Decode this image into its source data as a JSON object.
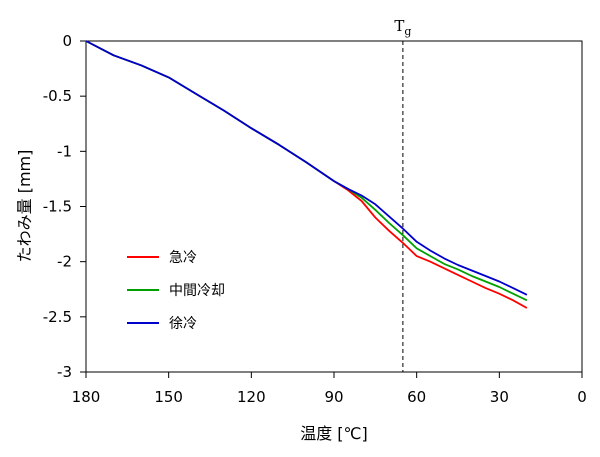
{
  "chart_data": {
    "type": "line",
    "xlabel": "温度 [℃]",
    "ylabel": "たわみ量 [mm]",
    "xlim": [
      180,
      0
    ],
    "ylim": [
      -3,
      0
    ],
    "x_reversed": true,
    "x_ticks": [
      180,
      150,
      120,
      90,
      60,
      30,
      0
    ],
    "y_ticks": [
      0,
      -0.5,
      -1,
      -1.5,
      -2,
      -2.5,
      -3
    ],
    "x_tick_labels": [
      "180",
      "150",
      "120",
      "90",
      "60",
      "30",
      "0"
    ],
    "y_tick_labels": [
      "0",
      "-0.5",
      "-1",
      "-1.5",
      "-2",
      "-2.5",
      "-3"
    ],
    "grid": false,
    "legend_position": "lower-left",
    "annotations": [
      {
        "label": "T",
        "subscript": "g",
        "x": 65,
        "style": "dashed-vertical-line",
        "color": "#000000"
      }
    ],
    "series": [
      {
        "name": "急冷",
        "color": "#ff0000",
        "x": [
          180,
          170,
          160,
          150,
          140,
          130,
          120,
          110,
          100,
          90,
          85,
          80,
          75,
          70,
          65,
          60,
          55,
          50,
          45,
          40,
          35,
          30,
          25,
          20
        ],
        "y": [
          0,
          -0.13,
          -0.22,
          -0.33,
          -0.48,
          -0.63,
          -0.79,
          -0.94,
          -1.1,
          -1.27,
          -1.35,
          -1.45,
          -1.6,
          -1.72,
          -1.83,
          -1.95,
          -2.0,
          -2.06,
          -2.12,
          -2.18,
          -2.24,
          -2.29,
          -2.35,
          -2.42
        ]
      },
      {
        "name": "中間冷却",
        "color": "#00a000",
        "x": [
          180,
          170,
          160,
          150,
          140,
          130,
          120,
          110,
          100,
          90,
          85,
          80,
          75,
          70,
          65,
          60,
          55,
          50,
          45,
          40,
          35,
          30,
          25,
          20
        ],
        "y": [
          0,
          -0.13,
          -0.22,
          -0.33,
          -0.48,
          -0.63,
          -0.79,
          -0.94,
          -1.1,
          -1.27,
          -1.34,
          -1.42,
          -1.53,
          -1.65,
          -1.76,
          -1.88,
          -1.95,
          -2.02,
          -2.07,
          -2.13,
          -2.18,
          -2.23,
          -2.29,
          -2.35
        ]
      },
      {
        "name": "徐冷",
        "color": "#0000cc",
        "x": [
          180,
          170,
          160,
          150,
          140,
          130,
          120,
          110,
          100,
          90,
          85,
          80,
          75,
          70,
          65,
          60,
          55,
          50,
          45,
          40,
          35,
          30,
          25,
          20
        ],
        "y": [
          0,
          -0.13,
          -0.22,
          -0.33,
          -0.48,
          -0.63,
          -0.79,
          -0.94,
          -1.1,
          -1.27,
          -1.34,
          -1.4,
          -1.48,
          -1.59,
          -1.7,
          -1.82,
          -1.9,
          -1.97,
          -2.03,
          -2.08,
          -2.13,
          -2.18,
          -2.24,
          -2.3
        ]
      }
    ]
  }
}
